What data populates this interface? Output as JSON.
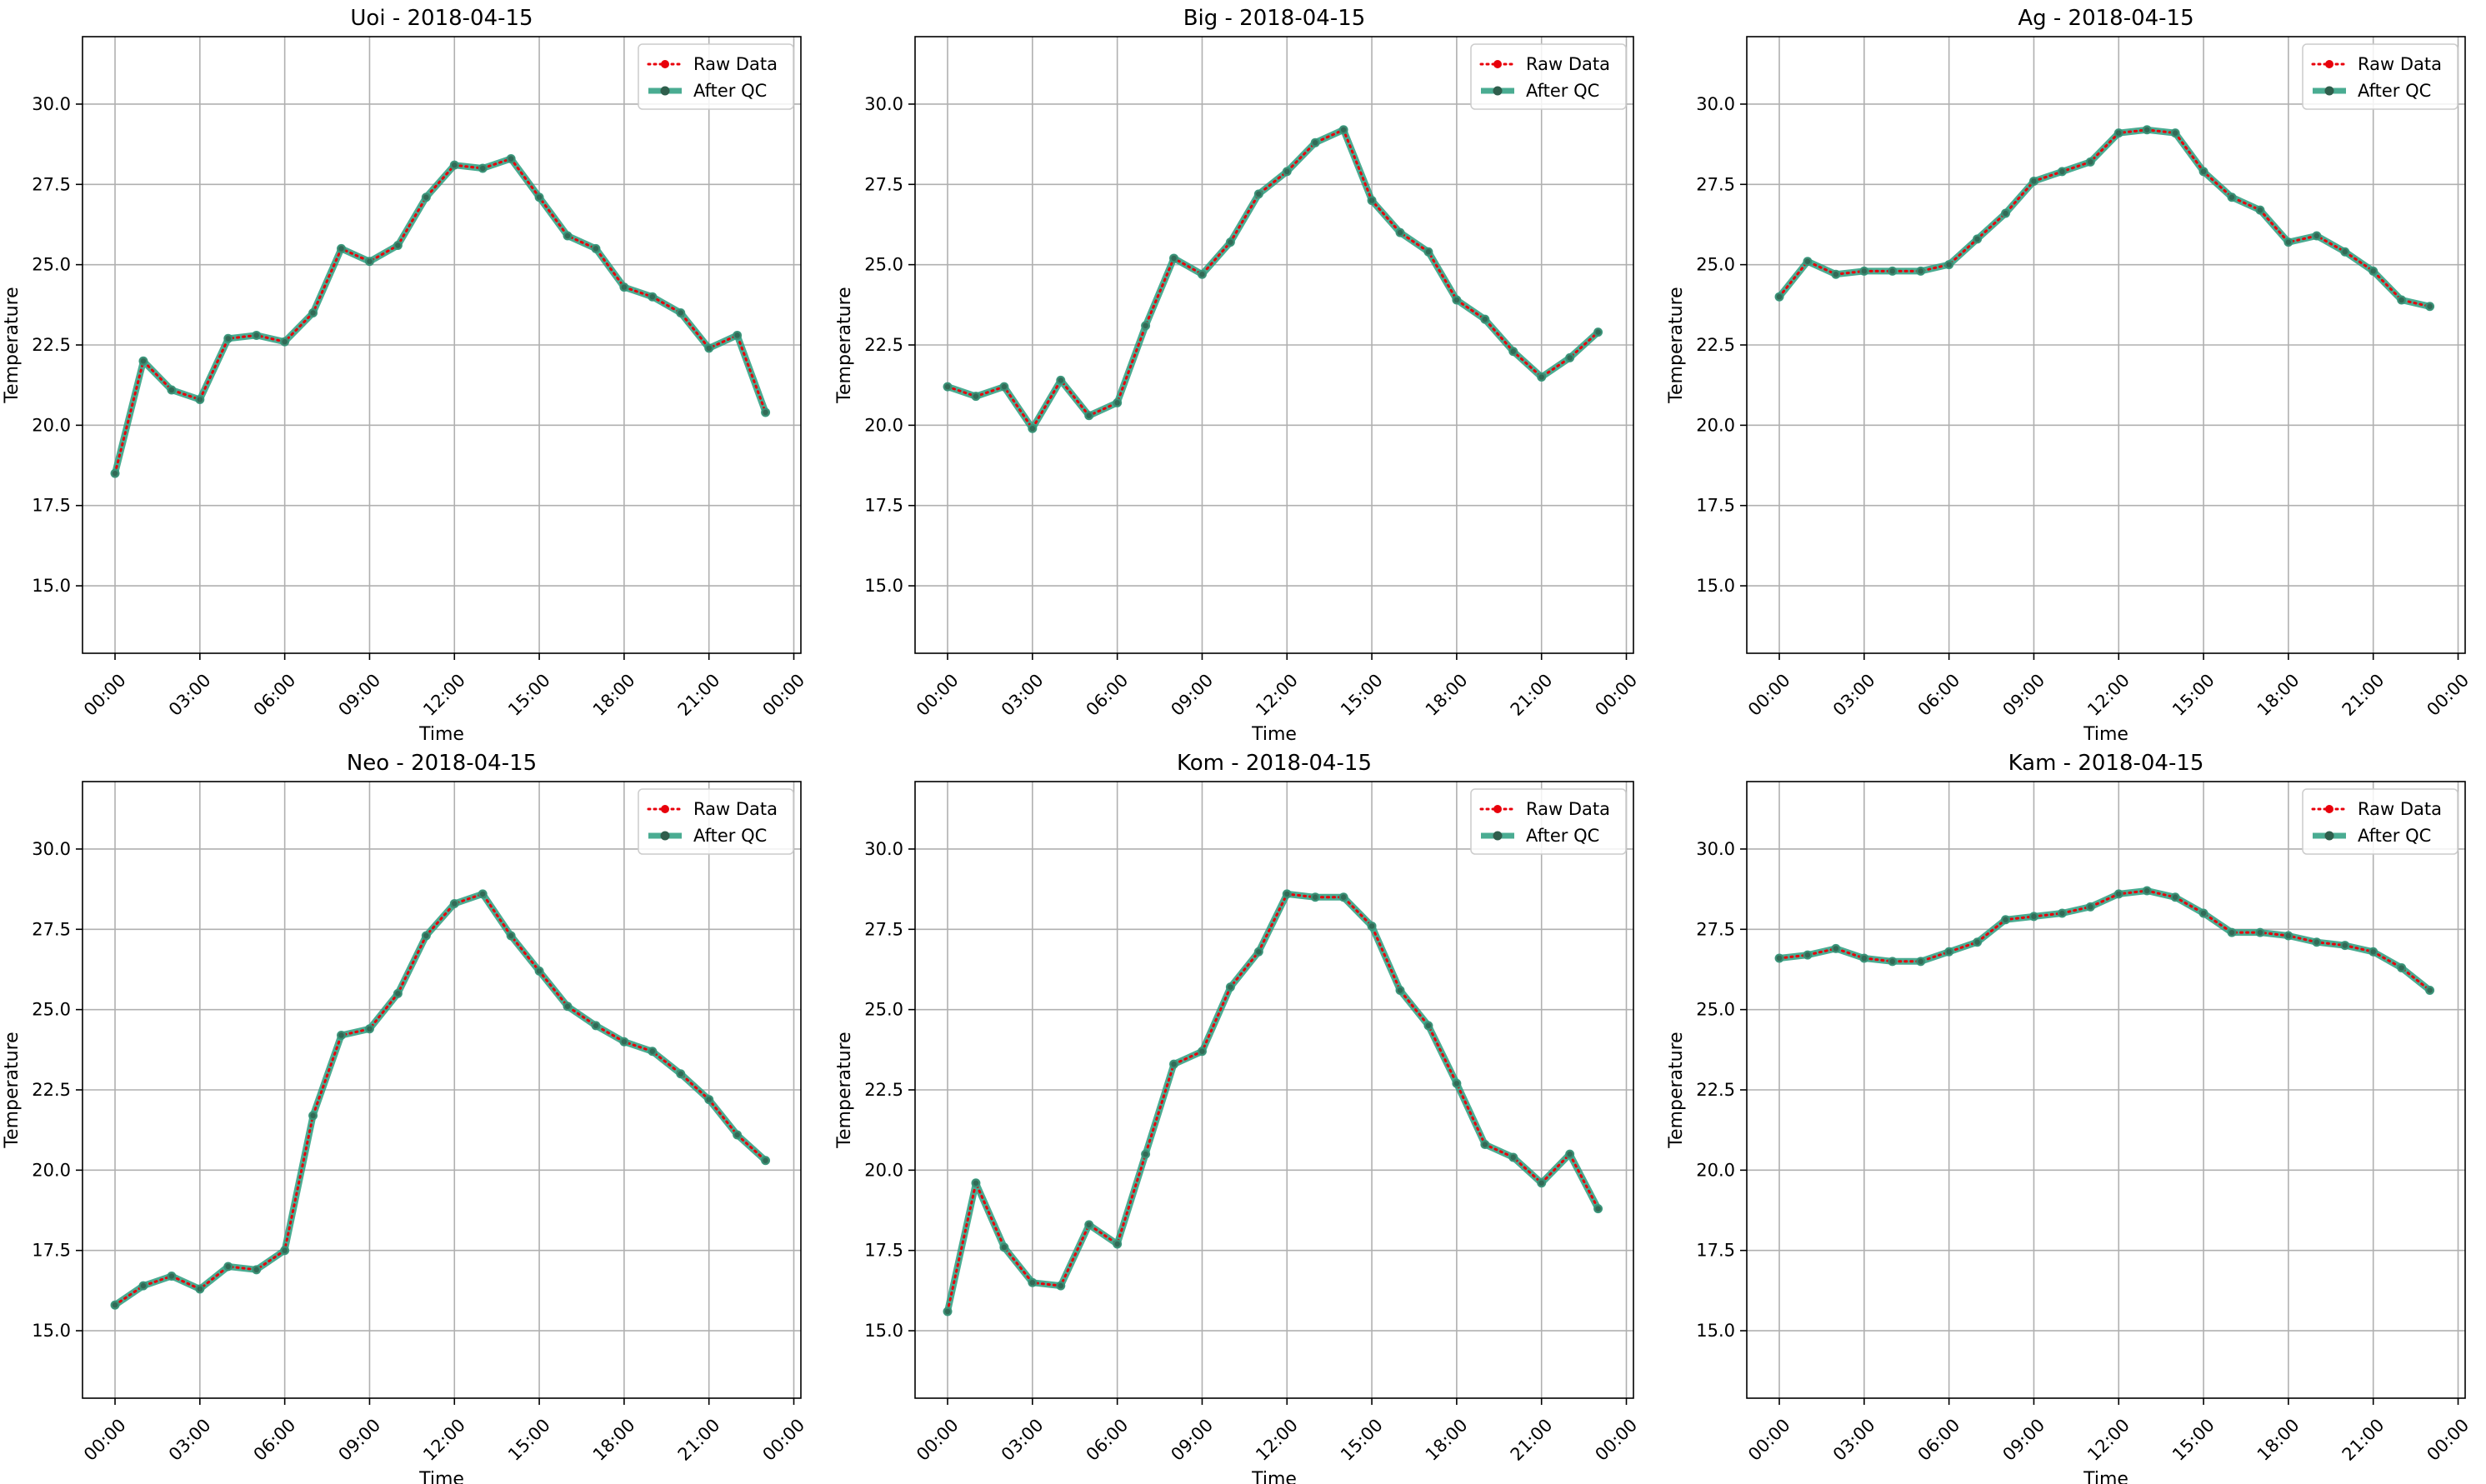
{
  "colors": {
    "raw": "#e8000b",
    "qc": "#2a9d7f",
    "grid": "#b0b0b0",
    "axes": "#000000"
  },
  "chart_data": [
    {
      "type": "line",
      "title": "Uoi - 2018-04-15",
      "xlabel": "Time",
      "ylabel": "Temperature",
      "x_hours": [
        0,
        1,
        2,
        3,
        4,
        5,
        6,
        7,
        8,
        9,
        10,
        11,
        12,
        13,
        14,
        15,
        16,
        17,
        18,
        19,
        20,
        21,
        22,
        23
      ],
      "xtick_labels": [
        "00:00",
        "03:00",
        "06:00",
        "09:00",
        "12:00",
        "15:00",
        "18:00",
        "21:00",
        "00:00"
      ],
      "yticks": [
        15.0,
        17.5,
        20.0,
        22.5,
        25.0,
        27.5,
        30.0
      ],
      "ylim": [
        12.9,
        32.1
      ],
      "grid": true,
      "legend_position": "top-right",
      "series": [
        {
          "name": "Raw Data",
          "values": [
            18.5,
            22.0,
            21.1,
            20.8,
            22.7,
            22.8,
            22.6,
            23.5,
            25.5,
            25.1,
            25.6,
            27.1,
            28.1,
            28.0,
            28.3,
            27.1,
            25.9,
            25.5,
            24.3,
            24.0,
            23.5,
            22.4,
            22.8,
            20.4
          ]
        },
        {
          "name": "After QC",
          "values": [
            18.5,
            22.0,
            21.1,
            20.8,
            22.7,
            22.8,
            22.6,
            23.5,
            25.5,
            25.1,
            25.6,
            27.1,
            28.1,
            28.0,
            28.3,
            27.1,
            25.9,
            25.5,
            24.3,
            24.0,
            23.5,
            22.4,
            22.8,
            20.4
          ]
        }
      ]
    },
    {
      "type": "line",
      "title": "Big - 2018-04-15",
      "xlabel": "Time",
      "ylabel": "Temperature",
      "x_hours": [
        0,
        1,
        2,
        3,
        4,
        5,
        6,
        7,
        8,
        9,
        10,
        11,
        12,
        13,
        14,
        15,
        16,
        17,
        18,
        19,
        20,
        21,
        22,
        23
      ],
      "xtick_labels": [
        "00:00",
        "03:00",
        "06:00",
        "09:00",
        "12:00",
        "15:00",
        "18:00",
        "21:00",
        "00:00"
      ],
      "yticks": [
        15.0,
        17.5,
        20.0,
        22.5,
        25.0,
        27.5,
        30.0
      ],
      "ylim": [
        12.9,
        32.1
      ],
      "grid": true,
      "legend_position": "top-right",
      "series": [
        {
          "name": "Raw Data",
          "values": [
            21.2,
            20.9,
            21.2,
            19.9,
            21.4,
            20.3,
            20.7,
            23.1,
            25.2,
            24.7,
            25.7,
            27.2,
            27.9,
            28.8,
            29.2,
            27.0,
            26.0,
            25.4,
            23.9,
            23.3,
            22.3,
            21.5,
            22.1,
            22.9
          ]
        },
        {
          "name": "After QC",
          "values": [
            21.2,
            20.9,
            21.2,
            19.9,
            21.4,
            20.3,
            20.7,
            23.1,
            25.2,
            24.7,
            25.7,
            27.2,
            27.9,
            28.8,
            29.2,
            27.0,
            26.0,
            25.4,
            23.9,
            23.3,
            22.3,
            21.5,
            22.1,
            22.9
          ]
        }
      ]
    },
    {
      "type": "line",
      "title": "Ag - 2018-04-15",
      "xlabel": "Time",
      "ylabel": "Temperature",
      "x_hours": [
        0,
        1,
        2,
        3,
        4,
        5,
        6,
        7,
        8,
        9,
        10,
        11,
        12,
        13,
        14,
        15,
        16,
        17,
        18,
        19,
        20,
        21,
        22,
        23
      ],
      "xtick_labels": [
        "00:00",
        "03:00",
        "06:00",
        "09:00",
        "12:00",
        "15:00",
        "18:00",
        "21:00",
        "00:00"
      ],
      "yticks": [
        15.0,
        17.5,
        20.0,
        22.5,
        25.0,
        27.5,
        30.0
      ],
      "ylim": [
        12.9,
        32.1
      ],
      "grid": true,
      "legend_position": "top-right",
      "series": [
        {
          "name": "Raw Data",
          "values": [
            24.0,
            25.1,
            24.7,
            24.8,
            24.8,
            24.8,
            25.0,
            25.8,
            26.6,
            27.6,
            27.9,
            28.2,
            29.1,
            29.2,
            29.1,
            27.9,
            27.1,
            26.7,
            25.7,
            25.9,
            25.4,
            24.8,
            23.9,
            23.7
          ]
        },
        {
          "name": "After QC",
          "values": [
            24.0,
            25.1,
            24.7,
            24.8,
            24.8,
            24.8,
            25.0,
            25.8,
            26.6,
            27.6,
            27.9,
            28.2,
            29.1,
            29.2,
            29.1,
            27.9,
            27.1,
            26.7,
            25.7,
            25.9,
            25.4,
            24.8,
            23.9,
            23.7
          ]
        }
      ]
    },
    {
      "type": "line",
      "title": "Neo - 2018-04-15",
      "xlabel": "Time",
      "ylabel": "Temperature",
      "x_hours": [
        0,
        1,
        2,
        3,
        4,
        5,
        6,
        7,
        8,
        9,
        10,
        11,
        12,
        13,
        14,
        15,
        16,
        17,
        18,
        19,
        20,
        21,
        22,
        23
      ],
      "xtick_labels": [
        "00:00",
        "03:00",
        "06:00",
        "09:00",
        "12:00",
        "15:00",
        "18:00",
        "21:00",
        "00:00"
      ],
      "yticks": [
        15.0,
        17.5,
        20.0,
        22.5,
        25.0,
        27.5,
        30.0
      ],
      "ylim": [
        12.9,
        32.1
      ],
      "grid": true,
      "legend_position": "top-right",
      "series": [
        {
          "name": "Raw Data",
          "values": [
            15.8,
            16.4,
            16.7,
            16.3,
            17.0,
            16.9,
            17.5,
            21.7,
            24.2,
            24.4,
            25.5,
            27.3,
            28.3,
            28.6,
            27.3,
            26.2,
            25.1,
            24.5,
            24.0,
            23.7,
            23.0,
            22.2,
            21.1,
            20.3
          ]
        },
        {
          "name": "After QC",
          "values": [
            15.8,
            16.4,
            16.7,
            16.3,
            17.0,
            16.9,
            17.5,
            21.7,
            24.2,
            24.4,
            25.5,
            27.3,
            28.3,
            28.6,
            27.3,
            26.2,
            25.1,
            24.5,
            24.0,
            23.7,
            23.0,
            22.2,
            21.1,
            20.3
          ]
        }
      ]
    },
    {
      "type": "line",
      "title": "Kom - 2018-04-15",
      "xlabel": "Time",
      "ylabel": "Temperature",
      "x_hours": [
        0,
        1,
        2,
        3,
        4,
        5,
        6,
        7,
        8,
        9,
        10,
        11,
        12,
        13,
        14,
        15,
        16,
        17,
        18,
        19,
        20,
        21,
        22,
        23
      ],
      "xtick_labels": [
        "00:00",
        "03:00",
        "06:00",
        "09:00",
        "12:00",
        "15:00",
        "18:00",
        "21:00",
        "00:00"
      ],
      "yticks": [
        15.0,
        17.5,
        20.0,
        22.5,
        25.0,
        27.5,
        30.0
      ],
      "ylim": [
        12.9,
        32.1
      ],
      "grid": true,
      "legend_position": "top-right",
      "series": [
        {
          "name": "Raw Data",
          "values": [
            15.6,
            19.6,
            17.6,
            16.5,
            16.4,
            18.3,
            17.7,
            20.5,
            23.3,
            23.7,
            25.7,
            26.8,
            28.6,
            28.5,
            28.5,
            27.6,
            25.6,
            24.5,
            22.7,
            20.8,
            20.4,
            19.6,
            20.5,
            18.8
          ]
        },
        {
          "name": "After QC",
          "values": [
            15.6,
            19.6,
            17.6,
            16.5,
            16.4,
            18.3,
            17.7,
            20.5,
            23.3,
            23.7,
            25.7,
            26.8,
            28.6,
            28.5,
            28.5,
            27.6,
            25.6,
            24.5,
            22.7,
            20.8,
            20.4,
            19.6,
            20.5,
            18.8
          ]
        }
      ]
    },
    {
      "type": "line",
      "title": "Kam - 2018-04-15",
      "xlabel": "Time",
      "ylabel": "Temperature",
      "x_hours": [
        0,
        1,
        2,
        3,
        4,
        5,
        6,
        7,
        8,
        9,
        10,
        11,
        12,
        13,
        14,
        15,
        16,
        17,
        18,
        19,
        20,
        21,
        22,
        23
      ],
      "xtick_labels": [
        "00:00",
        "03:00",
        "06:00",
        "09:00",
        "12:00",
        "15:00",
        "18:00",
        "21:00",
        "00:00"
      ],
      "yticks": [
        15.0,
        17.5,
        20.0,
        22.5,
        25.0,
        27.5,
        30.0
      ],
      "ylim": [
        12.9,
        32.1
      ],
      "grid": true,
      "legend_position": "top-right",
      "series": [
        {
          "name": "Raw Data",
          "values": [
            26.6,
            26.7,
            26.9,
            26.6,
            26.5,
            26.5,
            26.8,
            27.1,
            27.8,
            27.9,
            28.0,
            28.2,
            28.6,
            28.7,
            28.5,
            28.0,
            27.4,
            27.4,
            27.3,
            27.1,
            27.0,
            26.8,
            26.3,
            25.6
          ]
        },
        {
          "name": "After QC",
          "values": [
            26.6,
            26.7,
            26.9,
            26.6,
            26.5,
            26.5,
            26.8,
            27.1,
            27.8,
            27.9,
            28.0,
            28.2,
            28.6,
            28.7,
            28.5,
            28.0,
            27.4,
            27.4,
            27.3,
            27.1,
            27.0,
            26.8,
            26.3,
            25.6
          ]
        }
      ]
    }
  ]
}
